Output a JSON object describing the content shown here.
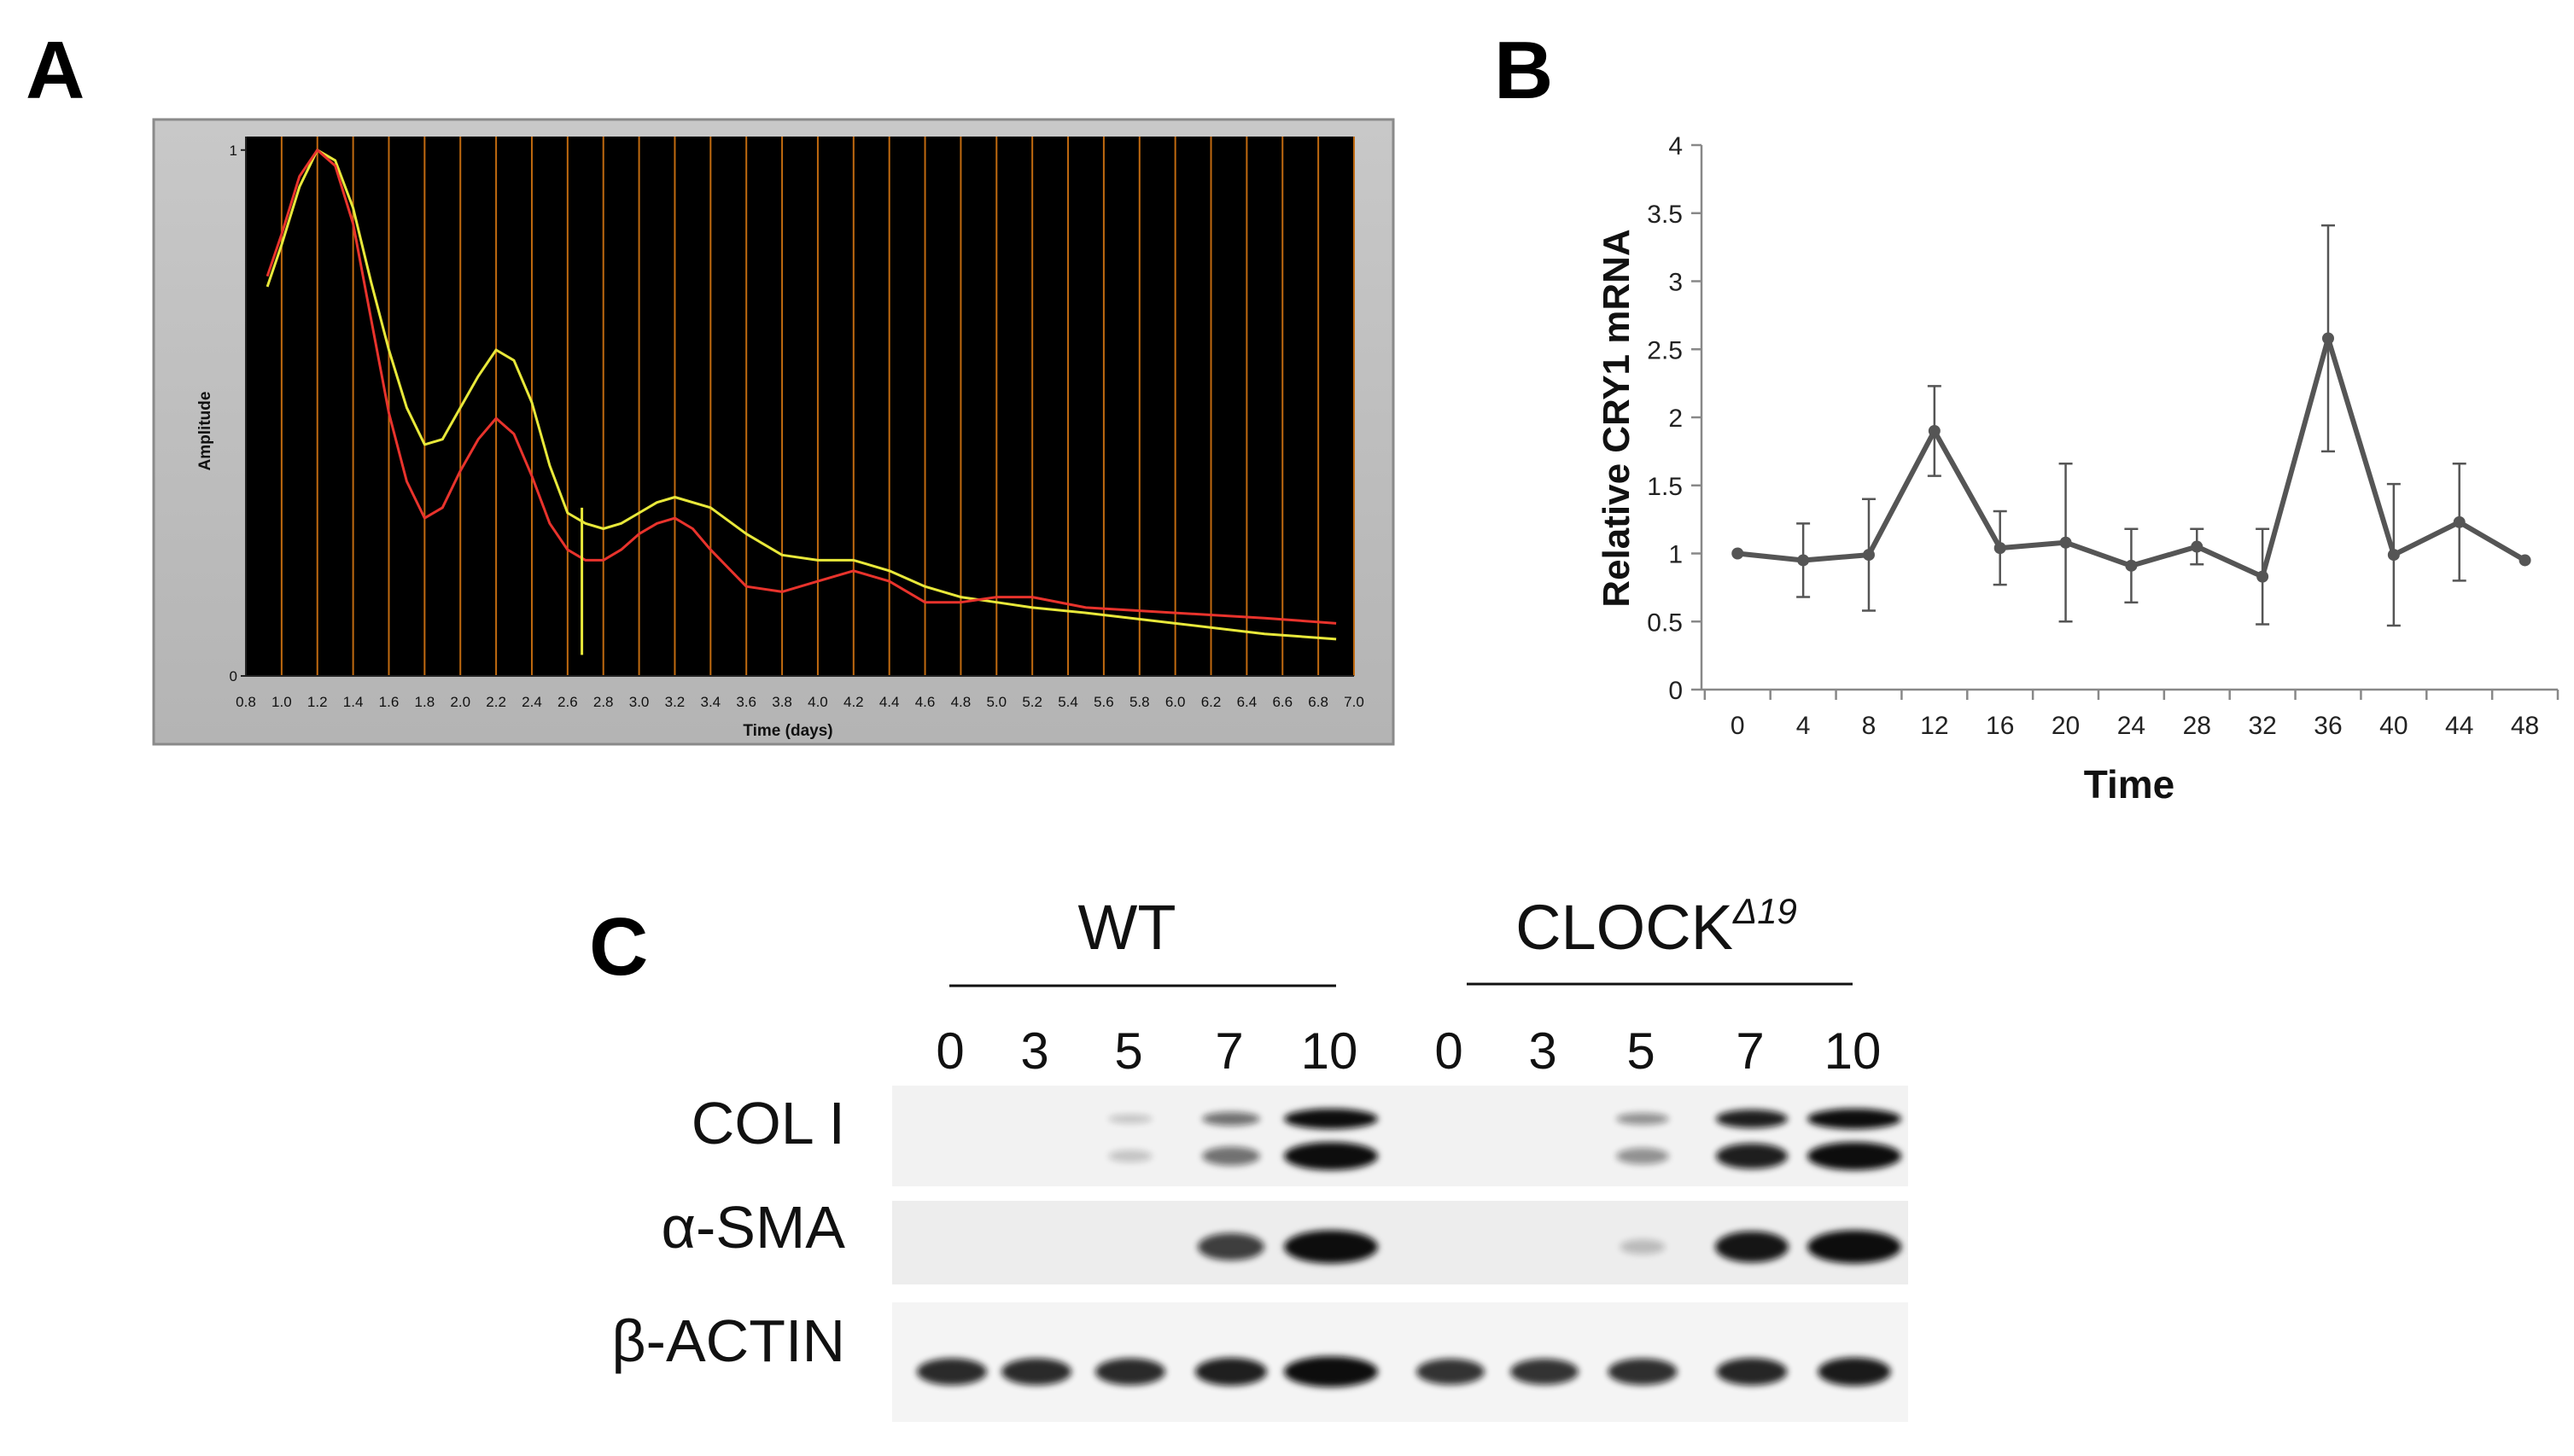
{
  "panels": {
    "a": "A",
    "b": "B",
    "c": "C"
  },
  "chart_data": [
    {
      "panel": "A",
      "type": "line",
      "xlabel": "Time (days)",
      "ylabel": "Amplitude",
      "xlim": [
        0.8,
        7.0
      ],
      "ylim": [
        0,
        1
      ],
      "x_ticks": [
        "0.8",
        "1.0",
        "1.2",
        "1.4",
        "1.6",
        "1.8",
        "2.0",
        "2.2",
        "2.4",
        "2.6",
        "2.8",
        "3.0",
        "3.2",
        "3.4",
        "3.6",
        "3.8",
        "4.0",
        "4.2",
        "4.4",
        "4.6",
        "4.8",
        "5.0",
        "5.2",
        "5.4",
        "5.6",
        "5.8",
        "6.0",
        "6.2",
        "6.4",
        "6.6",
        "6.8",
        "7.0"
      ],
      "y_ticks": [
        "0",
        "1"
      ],
      "grid": "vertical",
      "series": [
        {
          "color": "#e8e83a",
          "x": [
            0.92,
            1.0,
            1.1,
            1.2,
            1.3,
            1.4,
            1.5,
            1.6,
            1.7,
            1.8,
            1.9,
            2.0,
            2.1,
            2.2,
            2.3,
            2.4,
            2.5,
            2.6,
            2.7,
            2.8,
            2.9,
            3.0,
            3.1,
            3.2,
            3.4,
            3.6,
            3.8,
            4.0,
            4.2,
            4.4,
            4.6,
            4.8,
            5.0,
            5.2,
            5.5,
            6.0,
            6.5,
            6.9
          ],
          "y": [
            0.74,
            0.82,
            0.93,
            1.0,
            0.98,
            0.89,
            0.75,
            0.62,
            0.51,
            0.44,
            0.45,
            0.51,
            0.57,
            0.62,
            0.6,
            0.52,
            0.4,
            0.31,
            0.29,
            0.28,
            0.29,
            0.31,
            0.33,
            0.34,
            0.32,
            0.27,
            0.23,
            0.22,
            0.22,
            0.2,
            0.17,
            0.15,
            0.14,
            0.13,
            0.12,
            0.1,
            0.08,
            0.07
          ]
        },
        {
          "color": "#e8332c",
          "x": [
            0.92,
            1.0,
            1.1,
            1.2,
            1.3,
            1.4,
            1.5,
            1.6,
            1.7,
            1.8,
            1.9,
            2.0,
            2.1,
            2.2,
            2.3,
            2.4,
            2.5,
            2.6,
            2.7,
            2.8,
            2.9,
            3.0,
            3.1,
            3.2,
            3.3,
            3.4,
            3.6,
            3.8,
            4.0,
            4.2,
            4.4,
            4.6,
            4.8,
            5.0,
            5.2,
            5.5,
            6.0,
            6.5,
            6.9
          ],
          "y": [
            0.76,
            0.84,
            0.95,
            1.0,
            0.97,
            0.86,
            0.68,
            0.5,
            0.37,
            0.3,
            0.32,
            0.39,
            0.45,
            0.49,
            0.46,
            0.38,
            0.29,
            0.24,
            0.22,
            0.22,
            0.24,
            0.27,
            0.29,
            0.3,
            0.28,
            0.24,
            0.17,
            0.16,
            0.18,
            0.2,
            0.18,
            0.14,
            0.14,
            0.15,
            0.15,
            0.13,
            0.12,
            0.11,
            0.1
          ]
        }
      ],
      "annotations": [
        {
          "x": 2.68,
          "y_from": 0.04,
          "y_to": 0.32,
          "color": "#e8e83a"
        }
      ]
    },
    {
      "panel": "B",
      "type": "line",
      "xlabel": "Time",
      "ylabel": "Relative CRY1 mRNA",
      "categories": [
        "0",
        "4",
        "8",
        "12",
        "16",
        "20",
        "24",
        "28",
        "32",
        "36",
        "40",
        "44",
        "48"
      ],
      "values": [
        1.0,
        0.95,
        0.99,
        1.9,
        1.04,
        1.08,
        0.91,
        1.05,
        0.83,
        2.58,
        0.99,
        1.23,
        0.95
      ],
      "errors": [
        0,
        0.27,
        0.41,
        0.33,
        0.27,
        0.58,
        0.27,
        0.13,
        0.35,
        0.83,
        0.52,
        0.43,
        0
      ],
      "ylim": [
        0,
        4
      ],
      "y_ticks": [
        "0",
        "0.5",
        "1",
        "1.5",
        "2",
        "2.5",
        "3",
        "3.5",
        "4"
      ],
      "grid": false,
      "color": "#555555"
    }
  ],
  "blot": {
    "groups": [
      {
        "label": "WT",
        "superscript": ""
      },
      {
        "label": "CLOCK",
        "superscript": "Δ19"
      }
    ],
    "lanes": [
      "0",
      "3",
      "5",
      "7",
      "10",
      "0",
      "3",
      "5",
      "7",
      "10"
    ],
    "rows": [
      {
        "label": "COL I",
        "band_intensity": [
          0,
          0,
          0.05,
          0.45,
          1.0,
          0,
          0,
          0.3,
          0.85,
          1.0
        ]
      },
      {
        "label": "α-SMA",
        "band_intensity": [
          0,
          0,
          0,
          0.7,
          1.0,
          0,
          0,
          0.08,
          0.9,
          1.0
        ]
      },
      {
        "label": "β-ACTIN",
        "band_intensity": [
          0.8,
          0.8,
          0.8,
          0.85,
          1.0,
          0.75,
          0.75,
          0.78,
          0.82,
          0.88
        ]
      }
    ]
  }
}
